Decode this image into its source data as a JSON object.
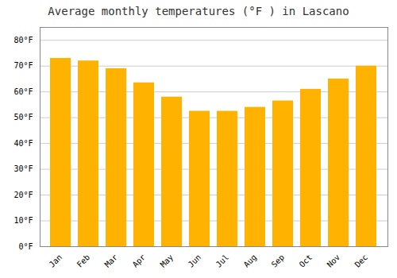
{
  "chart_data": {
    "type": "bar",
    "title": "Average monthly temperatures (°F ) in Lascano",
    "categories": [
      "Jan",
      "Feb",
      "Mar",
      "Apr",
      "May",
      "Jun",
      "Jul",
      "Aug",
      "Sep",
      "Oct",
      "Nov",
      "Dec"
    ],
    "values": [
      73,
      72,
      69,
      63.5,
      58,
      52.5,
      52.5,
      54,
      56.5,
      61,
      65,
      70
    ],
    "color": "#FFB300",
    "ylim": [
      0,
      85
    ],
    "yticks": [
      {
        "value": 0,
        "label": "0°F"
      },
      {
        "value": 10,
        "label": "10°F"
      },
      {
        "value": 20,
        "label": "20°F"
      },
      {
        "value": 30,
        "label": "30°F"
      },
      {
        "value": 40,
        "label": "40°F"
      },
      {
        "value": 50,
        "label": "50°F"
      },
      {
        "value": 60,
        "label": "60°F"
      },
      {
        "value": 70,
        "label": "70°F"
      },
      {
        "value": 80,
        "label": "80°F"
      }
    ],
    "grid": true
  }
}
